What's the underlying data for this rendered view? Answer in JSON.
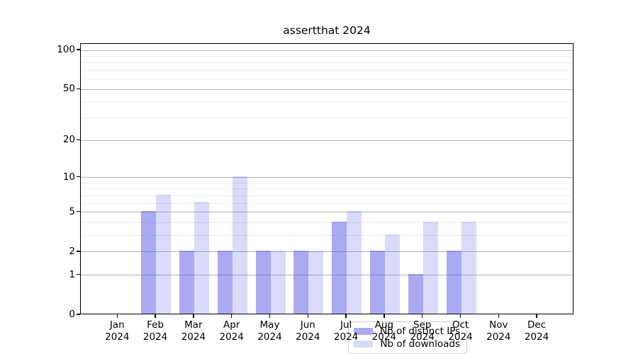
{
  "chart_title": "assertthat 2024",
  "chart_data": {
    "type": "bar",
    "title": "assertthat 2024",
    "categories": [
      "Jan 2024",
      "Feb 2024",
      "Mar 2024",
      "Apr 2024",
      "May 2024",
      "Jun 2024",
      "Jul 2024",
      "Aug 2024",
      "Sep 2024",
      "Oct 2024",
      "Nov 2024",
      "Dec 2024"
    ],
    "series": [
      {
        "name": "Nb of distinct IPs",
        "values": [
          0,
          5,
          2,
          2,
          2,
          2,
          4,
          2,
          1,
          2,
          0,
          0
        ],
        "color": "rgba(85,85,230,0.5)",
        "rendered_hex": "#aaaaf3"
      },
      {
        "name": "Nb of downloads",
        "values": [
          0,
          7,
          6,
          10,
          2,
          2,
          5,
          3,
          4,
          4,
          0,
          0
        ],
        "color": "rgba(85,85,230,0.22)",
        "rendered_hex": "#d9d9f8"
      }
    ],
    "xlabel": "",
    "ylabel": "",
    "yscale": "log1p",
    "ylim": [
      0,
      112
    ],
    "yticks": [
      0,
      1,
      2,
      5,
      10,
      20,
      50,
      100
    ],
    "yticks_minor": [
      3,
      4,
      6,
      7,
      8,
      9,
      30,
      40,
      60,
      70,
      80,
      90
    ],
    "grid": true,
    "legend_position": "inside lower-center",
    "colors": {
      "grid_major": "#b2b2b2",
      "grid_minor": "#e9e9e9",
      "spine": "#000000",
      "text": "#000000",
      "background": "#ffffff"
    }
  }
}
